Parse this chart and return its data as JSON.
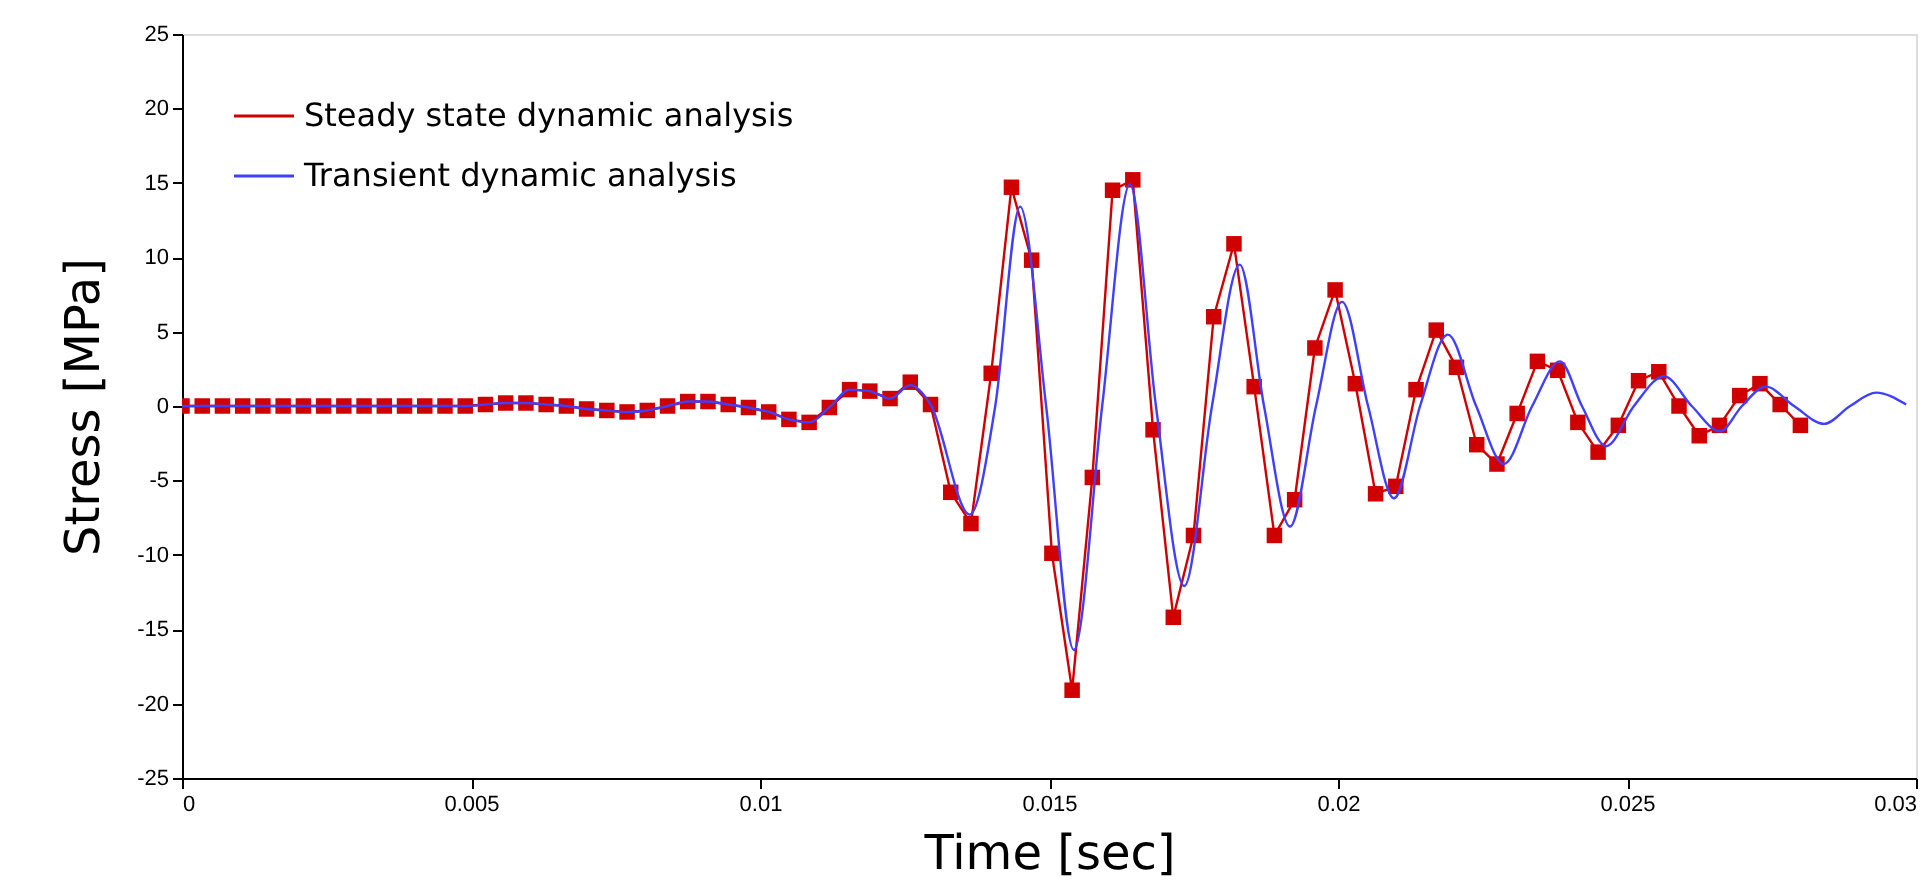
{
  "chart_data": {
    "type": "line",
    "xlabel": "Time [sec]",
    "ylabel": "Stress [MPa]",
    "xlim": [
      0,
      0.03
    ],
    "xticks": [
      0,
      0.005,
      0.01,
      0.015,
      0.02,
      0.025,
      0.03
    ],
    "ylim": [
      -25,
      25
    ],
    "yticks": [
      -25,
      -20,
      -15,
      -10,
      -5,
      0,
      5,
      10,
      15,
      20,
      25
    ],
    "grid": false,
    "legend": "top left",
    "line_style": "solid",
    "series": [
      {
        "name": "Steady state dynamic analysis",
        "color": "#d10000",
        "marker": "square",
        "x": [
          0,
          0.00035,
          0.0007,
          0.00105,
          0.0014,
          0.00175,
          0.0021,
          0.00245,
          0.0028,
          0.00315,
          0.0035,
          0.00385,
          0.0042,
          0.00455,
          0.0049,
          0.00525,
          0.0056,
          0.00595,
          0.0063,
          0.00665,
          0.007,
          0.00735,
          0.0077,
          0.00805,
          0.0084,
          0.00875,
          0.0091,
          0.00945,
          0.0098,
          0.01015,
          0.0105,
          0.01085,
          0.0112,
          0.01155,
          0.0119,
          0.01225,
          0.0126,
          0.01295,
          0.0133,
          0.01365,
          0.014,
          0.01435,
          0.0147,
          0.01505,
          0.0154,
          0.01575,
          0.0161,
          0.01645,
          0.0168,
          0.01715,
          0.0175,
          0.01785,
          0.0182,
          0.01855,
          0.0189,
          0.01925,
          0.0196,
          0.01995,
          0.0203,
          0.02065,
          0.021,
          0.02135,
          0.0217,
          0.02205,
          0.0224,
          0.02275,
          0.0231,
          0.02345,
          0.0238,
          0.02415,
          0.0245,
          0.02485,
          0.0252,
          0.02555,
          0.0259,
          0.02625,
          0.0266,
          0.02695,
          0.0273,
          0.02765,
          0.028
        ],
        "values": [
          0,
          0,
          0,
          0,
          0,
          0,
          0,
          0,
          0,
          0,
          0,
          0,
          0,
          0,
          0,
          0.1,
          0.2,
          0.2,
          0.1,
          0,
          -0.2,
          -0.3,
          -0.4,
          -0.3,
          0,
          0.3,
          0.3,
          0.1,
          -0.1,
          -0.4,
          -0.9,
          -1.1,
          -0.1,
          1.1,
          1.0,
          0.5,
          1.6,
          0.1,
          -5.8,
          -7.9,
          2.2,
          14.7,
          9.8,
          -9.9,
          -19.1,
          -4.8,
          14.5,
          15.2,
          -1.6,
          -14.2,
          -8.7,
          6.0,
          10.9,
          1.3,
          -8.7,
          -6.3,
          3.9,
          7.8,
          1.5,
          -5.9,
          -5.4,
          1.1,
          5.1,
          2.6,
          -2.6,
          -3.9,
          -0.5,
          3.0,
          2.4,
          -1.1,
          -3.1,
          -1.3,
          1.7,
          2.3,
          0,
          -2.0,
          -1.3,
          0.7,
          1.5,
          0.1,
          -1.3
        ]
      },
      {
        "name": "Transient dynamic analysis",
        "color": "#3f3fff",
        "marker": "none",
        "x": [
          0,
          0.00035,
          0.0007,
          0.00105,
          0.0014,
          0.00175,
          0.0021,
          0.00245,
          0.0028,
          0.00315,
          0.0035,
          0.00385,
          0.0042,
          0.00455,
          0.0049,
          0.00525,
          0.0056,
          0.00595,
          0.0063,
          0.00665,
          0.007,
          0.00735,
          0.0077,
          0.00805,
          0.0084,
          0.00875,
          0.0091,
          0.00945,
          0.0098,
          0.01015,
          0.0105,
          0.01085,
          0.0112,
          0.01155,
          0.0119,
          0.01225,
          0.0126,
          0.01295,
          0.01363,
          0.01407,
          0.0145,
          0.01495,
          0.01543,
          0.01592,
          0.0164,
          0.01685,
          0.01734,
          0.01782,
          0.0183,
          0.01872,
          0.01917,
          0.01962,
          0.02007,
          0.02052,
          0.02097,
          0.02142,
          0.0219,
          0.02239,
          0.02287,
          0.02336,
          0.02384,
          0.02422,
          0.02464,
          0.02512,
          0.02564,
          0.02612,
          0.02661,
          0.02699,
          0.0274,
          0.02789,
          0.02841,
          0.02886,
          0.02931,
          0.02983
        ],
        "values": [
          0,
          0,
          0,
          0,
          0,
          0,
          0,
          0,
          0,
          0,
          0,
          0,
          0,
          0,
          0,
          0.1,
          0.2,
          0.2,
          0.1,
          0,
          -0.2,
          -0.3,
          -0.4,
          -0.3,
          0,
          0.3,
          0.3,
          0.1,
          -0.1,
          -0.4,
          -0.9,
          -1.1,
          -0.1,
          1.1,
          1.0,
          0.5,
          1.4,
          0.1,
          -7.3,
          0,
          13.4,
          0,
          -16.4,
          0,
          14.9,
          0,
          -12.1,
          0,
          9.5,
          0,
          -8.1,
          0,
          7.0,
          0,
          -6.2,
          0,
          4.8,
          0,
          -3.9,
          0,
          3.0,
          0,
          -2.7,
          0,
          2.0,
          0,
          -1.7,
          0,
          1.3,
          0,
          -1.2,
          0,
          0.9,
          0.1
        ]
      }
    ]
  }
}
